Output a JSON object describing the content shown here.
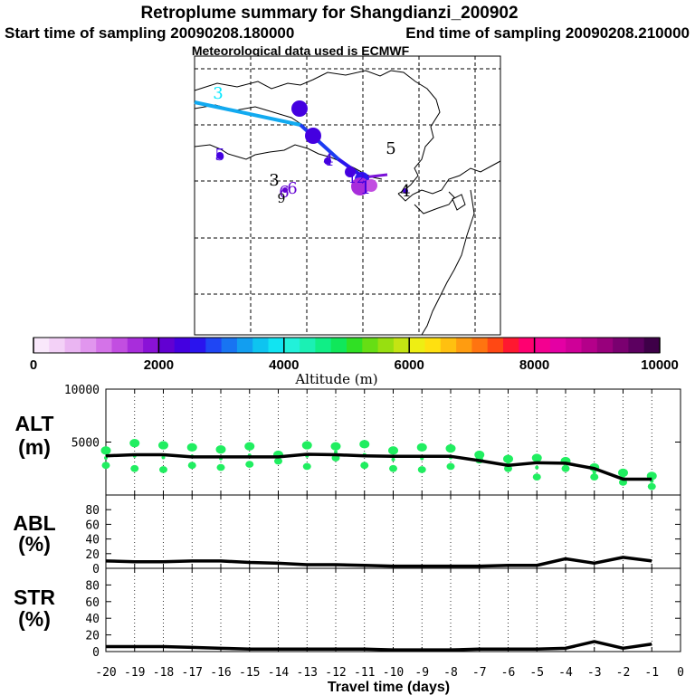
{
  "title": {
    "line1": "Retroplume summary for Shangdianzi_200902",
    "start": "Start time of sampling 20090208.180000",
    "end": "End time of sampling 20090208.210000",
    "line3": "Meteorological data used is ECMWF"
  },
  "colorbar": {
    "label": "Altitude (m)",
    "ticks": [
      "0",
      "2000",
      "4000",
      "6000",
      "8000",
      "10000"
    ],
    "tick_values": [
      0,
      2000,
      4000,
      6000,
      8000,
      10000
    ],
    "colors": [
      "#f9e8fb",
      "#f3d1f7",
      "#eab5f2",
      "#e196ee",
      "#d473e8",
      "#c24ee1",
      "#a82ddb",
      "#8a12d7",
      "#6200d2",
      "#4400e0",
      "#2a14ee",
      "#1f46f4",
      "#1874f2",
      "#129ef0",
      "#0ec4f0",
      "#11e4f2",
      "#22f1da",
      "#1bf0b4",
      "#10ee86",
      "#10e75a",
      "#30e024",
      "#66de14",
      "#98df10",
      "#c4e413",
      "#eeee13",
      "#ffe010",
      "#ffc010",
      "#ff9c10",
      "#ff7410",
      "#ff4814",
      "#ff1830",
      "#ff0070",
      "#f40090",
      "#e400a4",
      "#cf0098",
      "#b4008a",
      "#98007c",
      "#7a0070",
      "#5c0060",
      "#3e0048"
    ]
  },
  "map_labels": [
    {
      "text": "3",
      "color": "#00e8ff"
    },
    {
      "text": "3",
      "color": "#4400e0"
    },
    {
      "text": "3",
      "color": "#4400e0"
    },
    {
      "text": "5",
      "color": "#000000"
    },
    {
      "text": "5",
      "color": "#4400e0"
    },
    {
      "text": "3",
      "color": "#000000"
    },
    {
      "text": "6",
      "color": "#6200d2"
    },
    {
      "text": "6",
      "color": "#6200d2"
    },
    {
      "text": "9",
      "color": "#000000"
    },
    {
      "text": "4",
      "color": "#4400e0"
    },
    {
      "text": "4",
      "color": "#000000"
    },
    {
      "text": "12",
      "color": "#4400e0"
    },
    {
      "text": "1",
      "color": "#4400e0"
    }
  ],
  "chart_data": [
    {
      "type": "line",
      "panel": "ALT",
      "label_line1": "ALT",
      "label_line2": "(m)",
      "x": [
        -20,
        -19,
        -18,
        -17,
        -16,
        -15,
        -14,
        -13,
        -12,
        -11,
        -10,
        -9,
        -8,
        -7,
        -6,
        -5,
        -4,
        -3,
        -2,
        -1
      ],
      "line_values": [
        3700,
        3800,
        3800,
        3600,
        3600,
        3600,
        3600,
        3850,
        3800,
        3700,
        3650,
        3650,
        3650,
        3250,
        2800,
        3050,
        3000,
        2500,
        1500,
        1500
      ],
      "ylim": [
        0,
        10000
      ],
      "yticks": [
        5000,
        10000
      ],
      "cluster_altitudes": [
        [
          4200,
          2800
        ],
        [
          4900,
          2500
        ],
        [
          4700,
          2400
        ],
        [
          4500,
          2800
        ],
        [
          4300,
          2600
        ],
        [
          4600,
          2900
        ],
        [
          3800,
          3200
        ],
        [
          4700,
          2700
        ],
        [
          4600,
          3500
        ],
        [
          4800,
          2800
        ],
        [
          4200,
          2500
        ],
        [
          4500,
          2400
        ],
        [
          4400,
          2700
        ],
        [
          3800,
          3300
        ],
        [
          3400,
          2500
        ],
        [
          3500,
          1700
        ],
        [
          3200,
          2500
        ],
        [
          2600,
          1700
        ],
        [
          2100,
          1200
        ],
        [
          1800,
          800
        ]
      ]
    },
    {
      "type": "line",
      "panel": "ABL",
      "label_line1": "ABL",
      "label_line2": "(%)",
      "x": [
        -20,
        -19,
        -18,
        -17,
        -16,
        -15,
        -14,
        -13,
        -12,
        -11,
        -10,
        -9,
        -8,
        -7,
        -6,
        -5,
        -4,
        -3,
        -2,
        -1
      ],
      "values": [
        10,
        9,
        9,
        10,
        10,
        8,
        7,
        5,
        5,
        4,
        3,
        3,
        3,
        3,
        4,
        4,
        13,
        7,
        15,
        10
      ],
      "ylim": [
        0,
        100
      ],
      "yticks": [
        0,
        20,
        40,
        60,
        80
      ]
    },
    {
      "type": "line",
      "panel": "STR",
      "label_line1": "STR",
      "label_line2": "(%)",
      "x": [
        -20,
        -19,
        -18,
        -17,
        -16,
        -15,
        -14,
        -13,
        -12,
        -11,
        -10,
        -9,
        -8,
        -7,
        -6,
        -5,
        -4,
        -3,
        -2,
        -1
      ],
      "values": [
        6,
        6,
        6,
        5,
        4,
        3,
        3,
        3,
        3,
        3,
        2,
        2,
        2,
        3,
        3,
        3,
        4,
        12,
        4,
        9
      ],
      "ylim": [
        0,
        100
      ],
      "yticks": [
        0,
        20,
        40,
        60,
        80
      ],
      "xticks": [
        "-20",
        "-19",
        "-18",
        "-17",
        "-16",
        "-15",
        "-14",
        "-13",
        "-12",
        "-11",
        "-10",
        "-9",
        "-8",
        "-7",
        "-6",
        "-5",
        "-4",
        "-3",
        "-2",
        "-1",
        "0"
      ],
      "xlabel": "Travel time (days)"
    }
  ]
}
